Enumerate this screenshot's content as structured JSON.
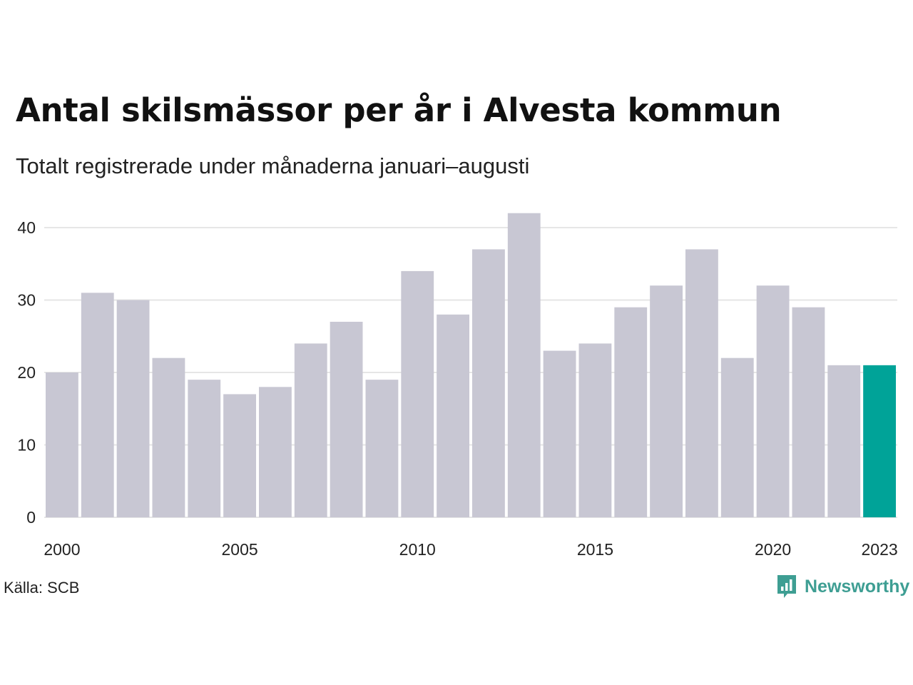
{
  "header": {
    "title": "Antal skilsmässor per år i Alvesta kommun",
    "subtitle": "Totalt registrerade under månaderna januari–augusti"
  },
  "footer": {
    "source": "Källa: SCB",
    "brand": "Newsworthy",
    "brand_icon": "bar-chart-bubble-icon",
    "brand_color": "#3e9e93"
  },
  "chart_data": {
    "type": "bar",
    "categories": [
      "2000",
      "2001",
      "2002",
      "2003",
      "2004",
      "2005",
      "2006",
      "2007",
      "2008",
      "2009",
      "2010",
      "2011",
      "2012",
      "2013",
      "2014",
      "2015",
      "2016",
      "2017",
      "2018",
      "2019",
      "2020",
      "2021",
      "2022",
      "2023"
    ],
    "values": [
      20,
      31,
      30,
      22,
      19,
      17,
      18,
      24,
      27,
      19,
      34,
      28,
      37,
      42,
      23,
      24,
      29,
      32,
      37,
      22,
      32,
      29,
      21,
      21
    ],
    "x_tick_labels": [
      "2000",
      "2005",
      "2010",
      "2015",
      "2020",
      "2023"
    ],
    "y_ticks": [
      0,
      10,
      20,
      30,
      40
    ],
    "ylim": [
      0,
      42
    ],
    "grid": "horizontal",
    "bar_color": "#c8c7d3",
    "highlight_color": "#00a398",
    "highlight_category": "2023"
  }
}
